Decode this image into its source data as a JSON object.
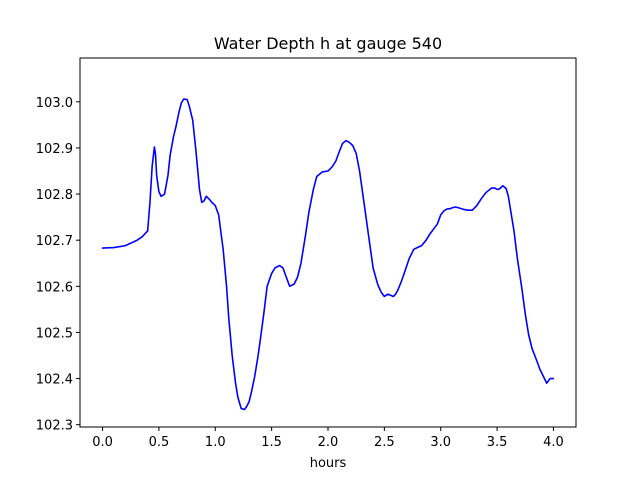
{
  "chart_data": {
    "type": "line",
    "title": "Water Depth h at gauge 540",
    "xlabel": "hours",
    "ylabel": "",
    "xlim": [
      -0.2,
      4.2
    ],
    "ylim": [
      102.295,
      103.095
    ],
    "xticks": [
      0.0,
      0.5,
      1.0,
      1.5,
      2.0,
      2.5,
      3.0,
      3.5,
      4.0
    ],
    "xtick_labels": [
      "0.0",
      "0.5",
      "1.0",
      "1.5",
      "2.0",
      "2.5",
      "3.0",
      "3.5",
      "4.0"
    ],
    "yticks": [
      102.3,
      102.4,
      102.5,
      102.6,
      102.7,
      102.8,
      102.9,
      103.0
    ],
    "ytick_labels": [
      "102.3",
      "102.4",
      "102.5",
      "102.6",
      "102.7",
      "102.8",
      "102.9",
      "103.0"
    ],
    "grid": false,
    "series": [
      {
        "color": "#0000ff",
        "x": [
          0.0,
          0.1,
          0.2,
          0.3,
          0.35,
          0.4,
          0.42,
          0.44,
          0.46,
          0.47,
          0.48,
          0.5,
          0.52,
          0.55,
          0.58,
          0.6,
          0.63,
          0.65,
          0.68,
          0.7,
          0.72,
          0.75,
          0.77,
          0.8,
          0.83,
          0.86,
          0.88,
          0.9,
          0.92,
          0.95,
          0.97,
          1.0,
          1.03,
          1.07,
          1.1,
          1.12,
          1.15,
          1.18,
          1.2,
          1.23,
          1.26,
          1.28,
          1.3,
          1.32,
          1.35,
          1.38,
          1.4,
          1.43,
          1.46,
          1.5,
          1.53,
          1.57,
          1.6,
          1.63,
          1.66,
          1.7,
          1.73,
          1.76,
          1.8,
          1.83,
          1.87,
          1.9,
          1.95,
          2.0,
          2.04,
          2.07,
          2.1,
          2.13,
          2.16,
          2.19,
          2.22,
          2.25,
          2.28,
          2.32,
          2.36,
          2.4,
          2.44,
          2.47,
          2.5,
          2.53,
          2.56,
          2.58,
          2.6,
          2.62,
          2.65,
          2.69,
          2.72,
          2.76,
          2.8,
          2.83,
          2.87,
          2.9,
          2.93,
          2.97,
          3.0,
          3.03,
          3.06,
          3.08,
          3.1,
          3.13,
          3.16,
          3.2,
          3.24,
          3.28,
          3.32,
          3.36,
          3.4,
          3.45,
          3.48,
          3.5,
          3.52,
          3.55,
          3.58,
          3.6,
          3.62,
          3.65,
          3.68,
          3.72,
          3.75,
          3.78,
          3.81,
          3.85,
          3.88,
          3.91,
          3.94,
          3.97,
          4.0
        ],
        "y": [
          102.683,
          102.684,
          102.688,
          102.699,
          102.707,
          102.72,
          102.78,
          102.86,
          102.902,
          102.885,
          102.84,
          102.805,
          102.795,
          102.8,
          102.84,
          102.885,
          102.925,
          102.945,
          102.98,
          102.998,
          103.006,
          103.005,
          102.99,
          102.96,
          102.89,
          102.81,
          102.782,
          102.785,
          102.795,
          102.788,
          102.782,
          102.775,
          102.755,
          102.68,
          102.6,
          102.53,
          102.45,
          102.39,
          102.36,
          102.335,
          102.333,
          102.34,
          102.35,
          102.37,
          102.405,
          102.45,
          102.485,
          102.54,
          102.6,
          102.628,
          102.64,
          102.645,
          102.64,
          102.62,
          102.6,
          102.605,
          102.62,
          102.65,
          102.71,
          102.76,
          102.81,
          102.838,
          102.848,
          102.85,
          102.86,
          102.872,
          102.892,
          102.91,
          102.916,
          102.912,
          102.905,
          102.888,
          102.85,
          102.78,
          102.71,
          102.64,
          102.605,
          102.588,
          102.578,
          102.583,
          102.58,
          102.578,
          102.583,
          102.592,
          102.61,
          102.638,
          102.66,
          102.68,
          102.685,
          102.688,
          102.7,
          102.712,
          102.722,
          102.735,
          102.755,
          102.764,
          102.768,
          102.768,
          102.77,
          102.772,
          102.77,
          102.767,
          102.765,
          102.765,
          102.775,
          102.79,
          102.803,
          102.813,
          102.813,
          102.81,
          102.811,
          102.818,
          102.812,
          102.795,
          102.765,
          102.72,
          102.66,
          102.595,
          102.54,
          102.495,
          102.465,
          102.44,
          102.42,
          102.405,
          102.39,
          102.4,
          102.4
        ]
      }
    ]
  }
}
